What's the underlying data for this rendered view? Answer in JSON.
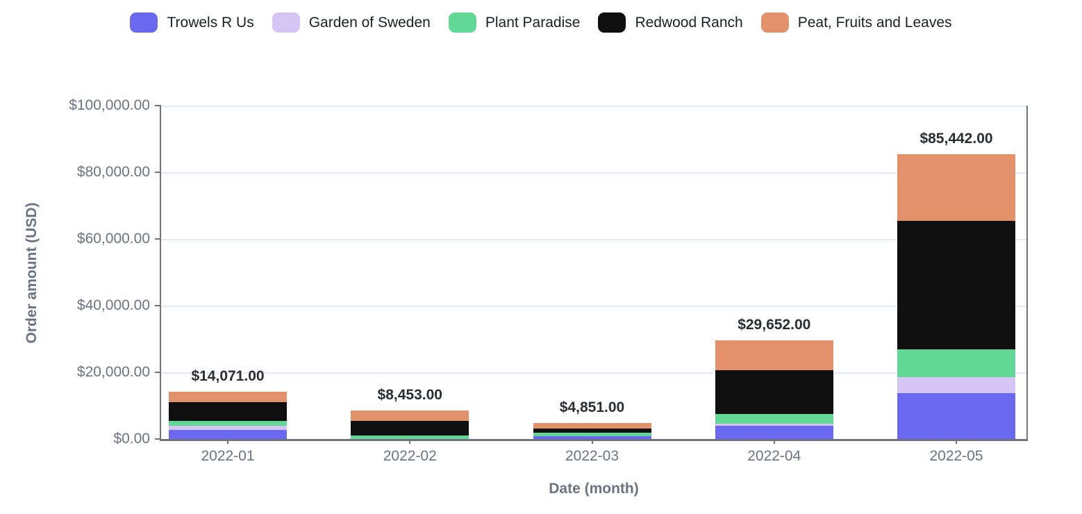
{
  "style": {
    "axis_line_color": "#6f747c",
    "grid_color": "#e5e7f2",
    "tick_label_color": "#6b7280",
    "axis_title_color": "#6b7280",
    "value_label_color": "#2b2d30",
    "legend_text_color": "#1b1e24"
  },
  "legend": {
    "items": [
      {
        "label": "Trowels R Us",
        "color": "#6b68f0"
      },
      {
        "label": "Garden of Sweden",
        "color": "#d4c5f4"
      },
      {
        "label": "Plant Paradise",
        "color": "#63d795"
      },
      {
        "label": "Redwood Ranch",
        "color": "#0f0f10"
      },
      {
        "label": "Peat, Fruits and Leaves",
        "color": "#e2916b"
      }
    ]
  },
  "chart_data": {
    "type": "bar",
    "stacked": true,
    "title": "",
    "xlabel": "Date (month)",
    "ylabel": "Order amount (USD)",
    "ylim": [
      0,
      100000
    ],
    "grid": true,
    "legend_position": "top",
    "categories": [
      "2022-01",
      "2022-02",
      "2022-03",
      "2022-04",
      "2022-05"
    ],
    "series": [
      {
        "name": "Trowels R Us",
        "color": "#6b68f0",
        "values": [
          2770,
          0,
          750,
          3900,
          13750
        ]
      },
      {
        "name": "Garden of Sweden",
        "color": "#d4c5f4",
        "values": [
          1250,
          0,
          0,
          700,
          4870
        ]
      },
      {
        "name": "Plant Paradise",
        "color": "#63d795",
        "values": [
          1400,
          1100,
          1100,
          2900,
          8330
        ]
      },
      {
        "name": "Redwood Ranch",
        "color": "#0f0f10",
        "values": [
          5590,
          4253,
          1300,
          13200,
          38550
        ]
      },
      {
        "name": "Peat, Fruits and Leaves",
        "color": "#e2916b",
        "values": [
          3061,
          3100,
          1701,
          8952,
          19942
        ]
      }
    ],
    "totals": [
      14071,
      8453,
      4851,
      29652,
      85442
    ],
    "total_labels": [
      "$14,071.00",
      "$8,453.00",
      "$4,851.00",
      "$29,652.00",
      "$85,442.00"
    ],
    "yticks": [
      {
        "value": 0,
        "label": "$0.00"
      },
      {
        "value": 20000,
        "label": "$20,000.00"
      },
      {
        "value": 40000,
        "label": "$40,000.00"
      },
      {
        "value": 60000,
        "label": "$60,000.00"
      },
      {
        "value": 80000,
        "label": "$80,000.00"
      },
      {
        "value": 100000,
        "label": "$100,000.00"
      }
    ]
  }
}
